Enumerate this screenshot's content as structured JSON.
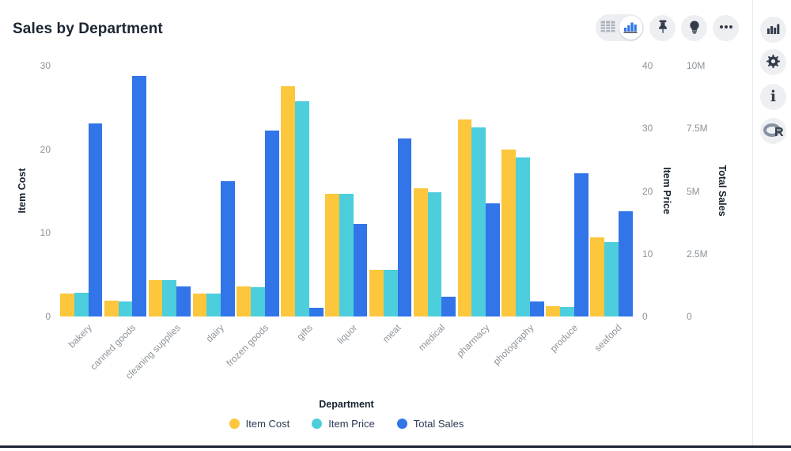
{
  "title": "Sales by Department",
  "toolbar": {
    "view_toggle": [
      "table-view",
      "chart-view"
    ],
    "selected_view": "chart-view",
    "icons": [
      "table-grid-icon",
      "bar-chart-icon",
      "pin-icon",
      "lightbulb-icon",
      "ellipsis-icon"
    ]
  },
  "sidebar": {
    "icons": [
      "bar-chart-icon",
      "gear-icon",
      "info-icon",
      "r-logo-icon"
    ]
  },
  "colors": {
    "item_cost": "#FCC63D",
    "item_price": "#4CCEDC",
    "total_sales": "#3175E9",
    "button_bg": "#EDEFF2",
    "icon_dark": "#333C4A",
    "tick_text": "#8C9298",
    "title_text": "#1B2633",
    "bottom_edge": "#1A2435"
  },
  "chart_data": {
    "type": "bar",
    "title": "Sales by Department",
    "categories": [
      "bakery",
      "canned goods",
      "cleaning supplies",
      "dairy",
      "frozen goods",
      "gifts",
      "liquor",
      "meat",
      "medical",
      "pharmacy",
      "photography",
      "produce",
      "seafood"
    ],
    "series": [
      {
        "name": "Item Cost",
        "axis": "left",
        "color": "#FCC63D",
        "values": [
          2.7,
          1.9,
          4.4,
          2.7,
          3.6,
          27.5,
          14.7,
          5.6,
          15.3,
          23.6,
          20.0,
          1.2,
          9.5
        ]
      },
      {
        "name": "Item Price",
        "axis": "price",
        "color": "#4CCEDC",
        "values": [
          3.8,
          2.4,
          5.8,
          3.6,
          4.7,
          34.3,
          19.5,
          7.4,
          19.8,
          30.2,
          25.4,
          1.5,
          11.9
        ]
      },
      {
        "name": "Total Sales",
        "axis": "sales",
        "color": "#3175E9",
        "values": [
          7.7,
          9.6,
          1.2,
          5.4,
          7.4,
          0.35,
          3.7,
          7.1,
          0.8,
          4.5,
          0.6,
          5.7,
          4.2
        ]
      }
    ],
    "axes": {
      "left": {
        "label": "Item Cost",
        "ticks": [
          "0",
          "10",
          "20",
          "30"
        ],
        "tick_values": [
          0,
          10,
          20,
          30
        ],
        "max": 30
      },
      "price": {
        "label": "Item Price",
        "ticks": [
          "0",
          "10",
          "20",
          "30",
          "40"
        ],
        "tick_values": [
          0,
          10,
          20,
          30,
          40
        ],
        "max": 40
      },
      "sales": {
        "label": "Total Sales",
        "ticks": [
          "0",
          "2.5M",
          "5M",
          "7.5M",
          "10M"
        ],
        "tick_values": [
          0,
          2.5,
          5,
          7.5,
          10
        ],
        "max": 10,
        "unit": "M"
      },
      "x": {
        "label": "Department"
      }
    },
    "legend": [
      "Item Cost",
      "Item Price",
      "Total Sales"
    ],
    "grid": false,
    "legend_position": "bottom"
  }
}
